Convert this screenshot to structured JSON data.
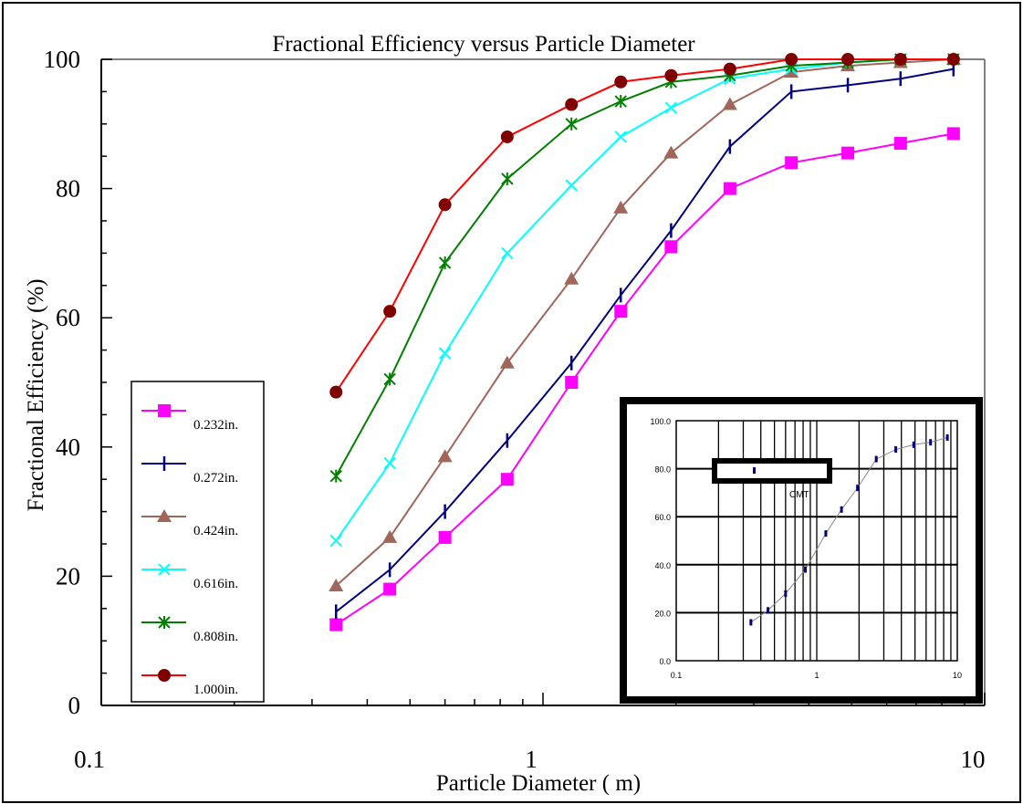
{
  "chart_data": [
    {
      "type": "line",
      "title": "Fractional Efficiency versus Particle Diameter",
      "xlabel": "Particle Diameter (   m)",
      "ylabel": "Fractional Efficiency (%)",
      "xscale": "log",
      "xlim": [
        0.1,
        10
      ],
      "ylim": [
        0,
        100
      ],
      "xticks": [
        0.1,
        1,
        10
      ],
      "xtick_labels": [
        "0.1",
        "1",
        "10"
      ],
      "yticks": [
        0,
        20,
        40,
        60,
        80,
        100
      ],
      "ytick_labels": [
        "0",
        "20",
        "40",
        "60",
        "80",
        "100"
      ],
      "grid": false,
      "legend_position": "left",
      "x": [
        0.34,
        0.45,
        0.6,
        0.83,
        1.16,
        1.5,
        1.95,
        2.65,
        3.65,
        4.9,
        6.45,
        8.5
      ],
      "series": [
        {
          "name": "0.232in.",
          "color": "#ff00ff",
          "marker": "square",
          "values": [
            12.5,
            18,
            26,
            35,
            50,
            61,
            71,
            80,
            84,
            85.5,
            87,
            88.5
          ]
        },
        {
          "name": "0.272in.",
          "color": "#000080",
          "marker": "tick",
          "values": [
            14.5,
            21,
            30,
            41,
            53,
            63.5,
            73.5,
            86.5,
            95,
            96,
            97,
            98.5
          ]
        },
        {
          "name": "0.424in.",
          "color": "#a0665a",
          "marker": "triangle",
          "values": [
            18.5,
            26,
            38.5,
            53,
            66,
            77,
            85.5,
            93,
            98,
            99,
            99.5,
            100
          ]
        },
        {
          "name": "0.616in.",
          "color": "#00ffff",
          "marker": "x",
          "values": [
            25.5,
            37.5,
            54.5,
            70,
            80.5,
            88,
            92.5,
            97,
            98.5,
            99.5,
            100,
            100
          ]
        },
        {
          "name": "0.808in.",
          "color": "#008000",
          "marker": "star",
          "values": [
            35.5,
            50.5,
            68.5,
            81.5,
            90,
            93.5,
            96.5,
            97.5,
            99,
            99.5,
            100,
            100
          ]
        },
        {
          "name": "1.000in.",
          "color": "#ff0000",
          "marker": "circle",
          "marker_color": "#800000",
          "values": [
            48.5,
            61,
            77.5,
            88,
            93,
            96.5,
            97.5,
            98.5,
            100,
            100,
            100,
            100
          ]
        }
      ]
    },
    {
      "type": "line",
      "note_label": "inset",
      "xscale": "log",
      "xlim": [
        0.1,
        10
      ],
      "ylim": [
        0,
        100
      ],
      "xtick_labels": [
        "0.1",
        "1",
        "10"
      ],
      "ytick_labels": [
        "0.0",
        "20.0",
        "40.0",
        "60.0",
        "80.0",
        "100.0"
      ],
      "yticks": [
        0,
        20,
        40,
        60,
        80,
        100
      ],
      "grid": true,
      "series": [
        {
          "color": "#888888",
          "marker_color": "#000080",
          "x": [
            0.34,
            0.45,
            0.6,
            0.83,
            1.16,
            1.5,
            1.95,
            2.65,
            3.65,
            4.9,
            6.45,
            8.5
          ],
          "values": [
            16,
            21,
            28,
            38,
            53,
            63,
            72,
            84,
            88,
            90,
            91,
            93
          ]
        }
      ],
      "legend_marker_value": 80,
      "partial_text": "CMT"
    }
  ]
}
